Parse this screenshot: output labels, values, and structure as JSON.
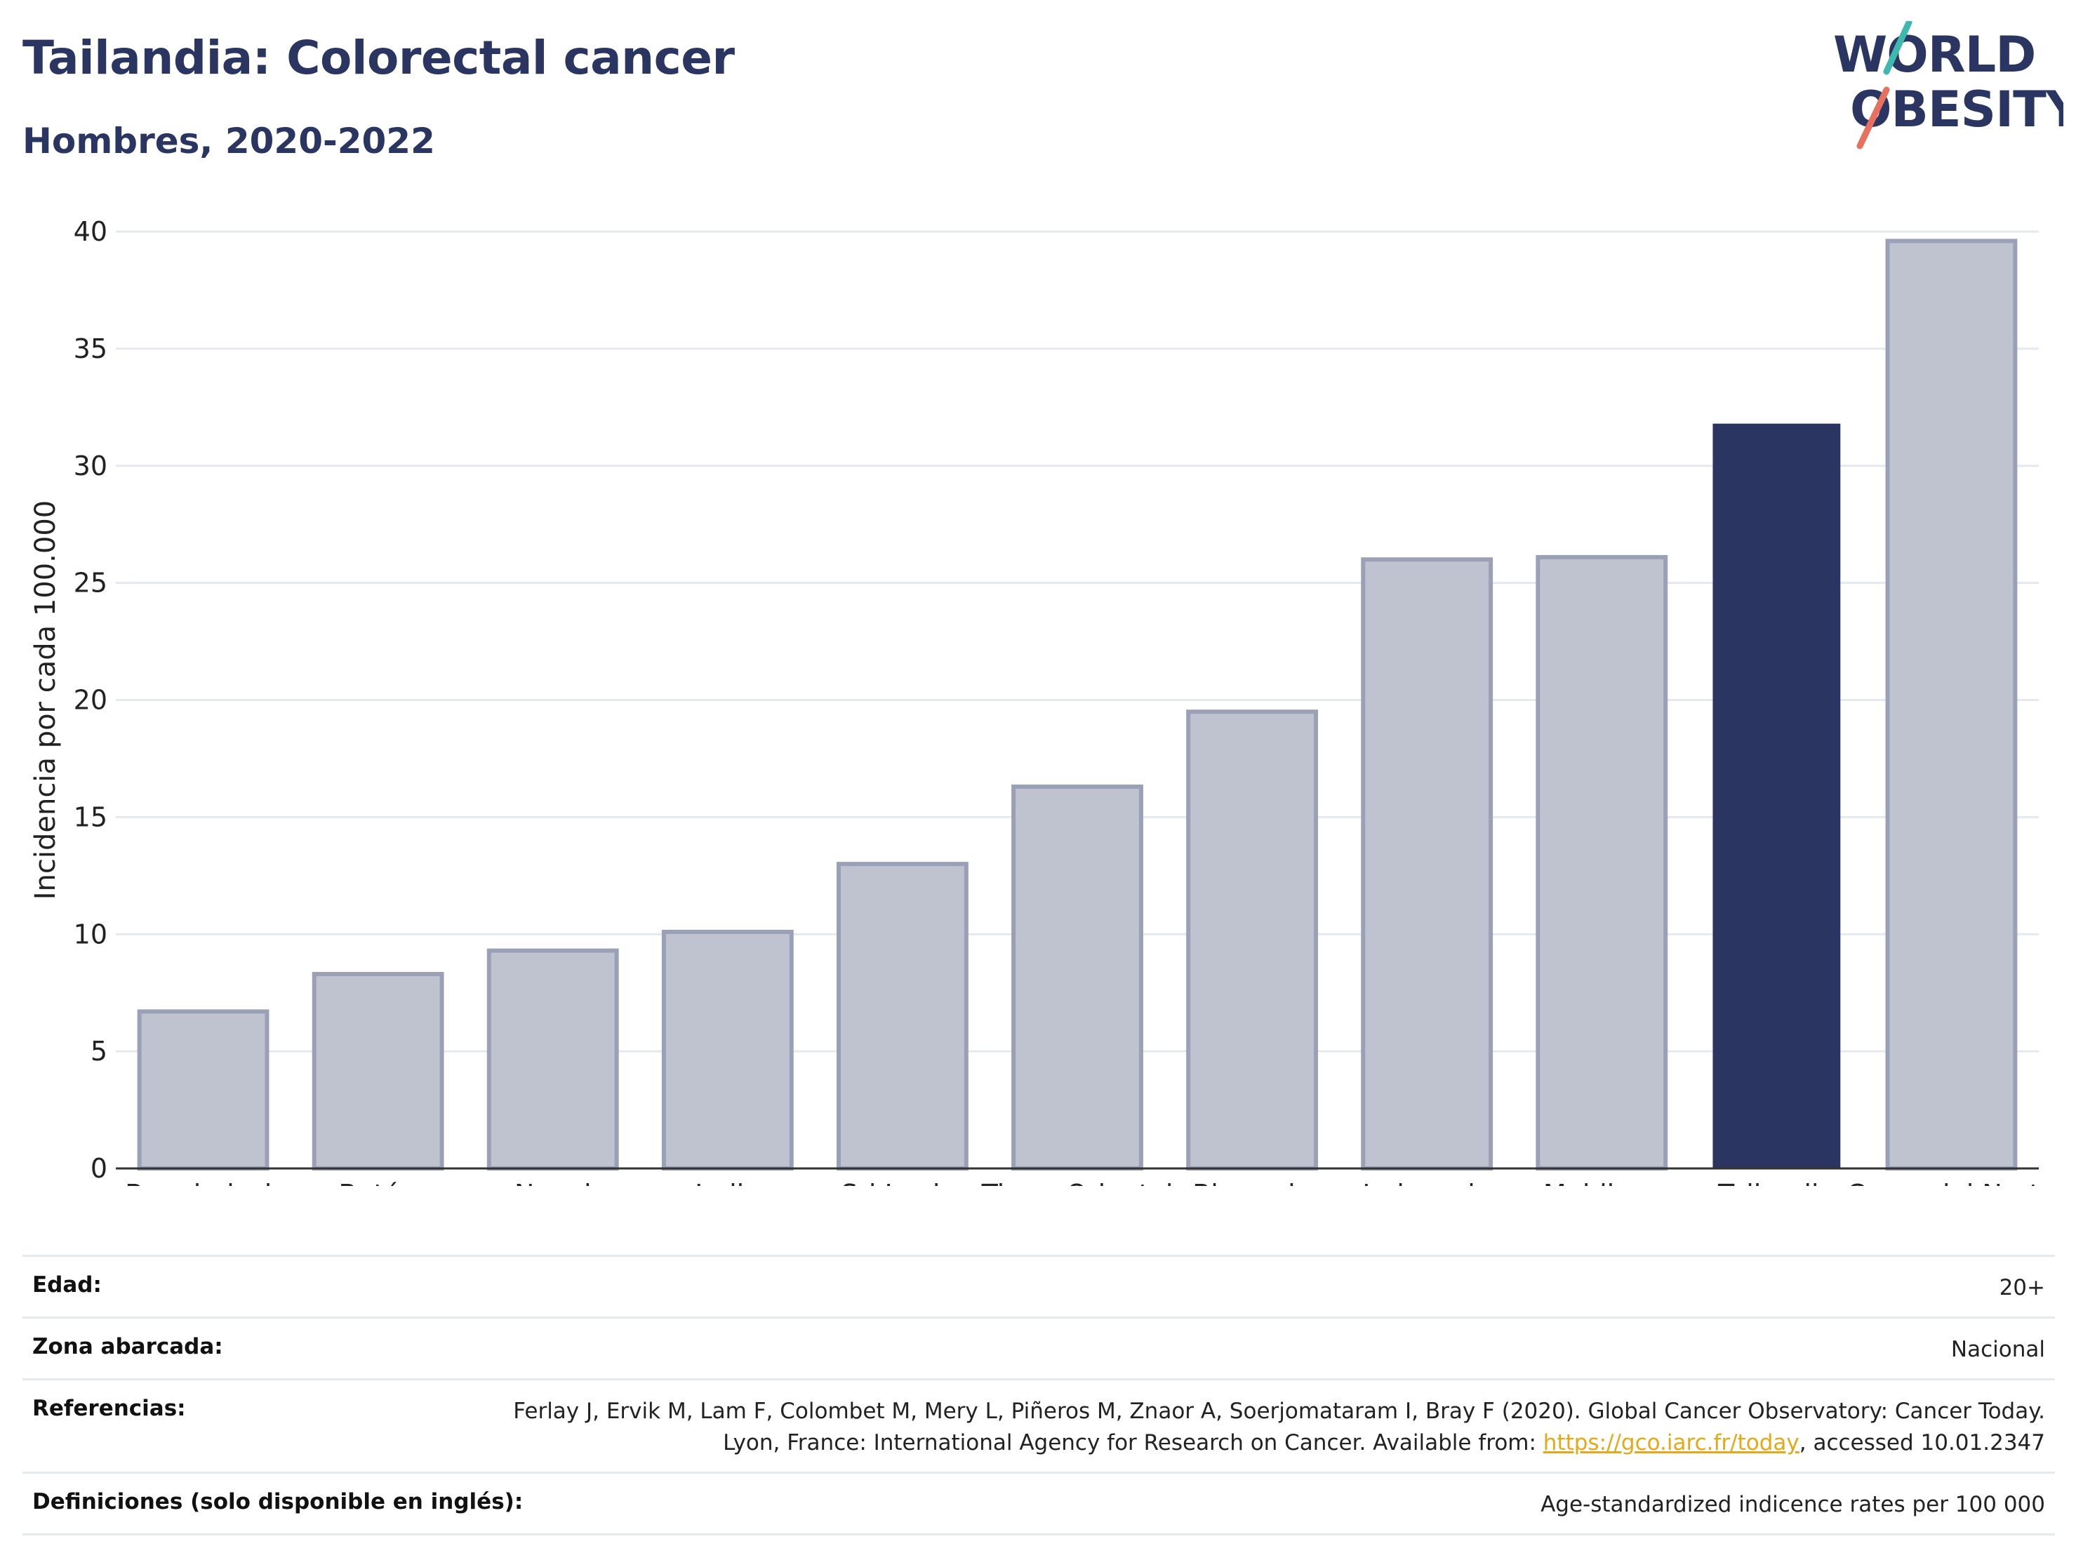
{
  "title": "Tailandia: Colorectal cancer",
  "subtitle": "Hombres, 2020-2022",
  "logo": {
    "line1": "WORLD",
    "line2": "OBESITY"
  },
  "colors": {
    "highlight": "#2b3562",
    "default_bar": "#bfc3d0",
    "default_bar_stroke": "#9aa0b5",
    "link": "#e6a817",
    "logo_teal": "#3fb8b0",
    "logo_coral": "#e8705f"
  },
  "chart_data": {
    "type": "bar",
    "categories": [
      "Bangladesh",
      "Bután",
      "Nepal",
      "India",
      "Sri Lanka",
      "Timor Oriental",
      "Birmania",
      "Indonesia",
      "Maldivas",
      "Tailandia",
      "Corea del Norte"
    ],
    "values": [
      6.7,
      8.3,
      9.3,
      10.1,
      13.0,
      16.3,
      19.5,
      26.0,
      26.1,
      31.8,
      39.6
    ],
    "highlight": "Tailandia",
    "ylabel": "Incidencia por cada 100.000",
    "xlabel": "",
    "ylim": [
      0,
      40
    ],
    "yticks": [
      0,
      5,
      10,
      15,
      20,
      25,
      30,
      35,
      40
    ],
    "grid": true
  },
  "meta": {
    "age_label": "Edad:",
    "age_value": "20+",
    "zone_label": "Zona abarcada:",
    "zone_value": "Nacional",
    "ref_label": "Referencias:",
    "ref_text_1": "Ferlay J, Ervik M, Lam F, Colombet M, Mery L, Piñeros M, Znaor A, Soerjomataram I, Bray F (2020). Global Cancer Observatory: Cancer Today. Lyon, France: International Agency for Research on Cancer. Available from: ",
    "ref_link": "https://gco.iarc.fr/today",
    "ref_text_2": ", accessed 10.01.2347",
    "def_label": "Definiciones (solo disponible en inglés):",
    "def_value": "Age-standardized indicence rates per 100 000"
  }
}
